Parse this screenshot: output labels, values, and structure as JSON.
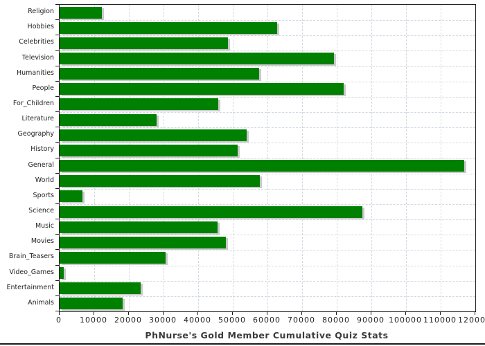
{
  "chart_data": {
    "type": "bar",
    "orientation": "horizontal",
    "title": "PhNurse's Gold Member Cumulative Quiz Stats",
    "categories": [
      "Religion",
      "Hobbies",
      "Celebrities",
      "Television",
      "Humanities",
      "People",
      "For_Children",
      "Literature",
      "Geography",
      "History",
      "General",
      "World",
      "Sports",
      "Science",
      "Music",
      "Movies",
      "Brain_Teasers",
      "Video_Games",
      "Entertainment",
      "Animals"
    ],
    "values": [
      12100,
      62800,
      48500,
      79100,
      57500,
      82000,
      45700,
      27900,
      54000,
      51300,
      116800,
      57700,
      6500,
      87300,
      45600,
      47900,
      30500,
      1200,
      23400,
      18100
    ],
    "xlabel": "",
    "ylabel": "",
    "xlim": [
      0,
      120000
    ],
    "x_tick_step": 10000,
    "x_tick_labels": [
      "0",
      "10000",
      "20000",
      "30000",
      "40000",
      "50000",
      "60000",
      "70000",
      "80000",
      "90000",
      "100000",
      "110000",
      "120000"
    ],
    "grid": true,
    "legend_position": "none",
    "bar_color": "#008000",
    "bar_shadow_color": "#c9c9c9",
    "grid_color": "#d2d9e0",
    "axis_color": "#222222",
    "label_color": "#1f1f1f",
    "title_color": "#3a3a3a"
  }
}
